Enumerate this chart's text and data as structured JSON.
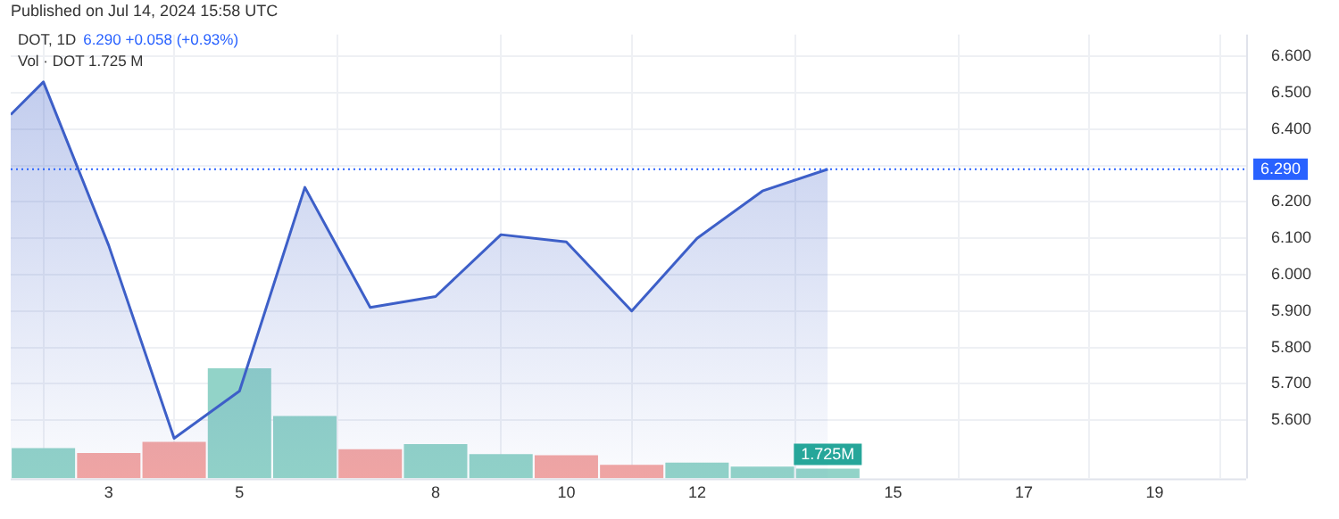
{
  "chart_data": {
    "type": "area",
    "title": "DOT, 1D",
    "annotations": [
      "6.290 +0.058 (+0.93%)",
      "Vol · DOT 1.725 M",
      "Published on Jul 14, 2024 15:58 UTC"
    ],
    "xlim": [
      1.5,
      20.4
    ],
    "xticks": [
      3,
      5,
      8,
      10,
      12,
      15,
      17,
      19
    ],
    "ylim": [
      5.44,
      6.66
    ],
    "yticks": [
      {
        "value": 5.6,
        "label": "5.600"
      },
      {
        "value": 5.7,
        "label": "5.700"
      },
      {
        "value": 5.8,
        "label": "5.800"
      },
      {
        "value": 5.9,
        "label": "5.900"
      },
      {
        "value": 6.0,
        "label": "6.000"
      },
      {
        "value": 6.1,
        "label": "6.100"
      },
      {
        "value": 6.2,
        "label": "6.200"
      },
      {
        "value": 6.3,
        "label": null
      },
      {
        "value": 6.4,
        "label": "6.400"
      },
      {
        "value": 6.5,
        "label": "6.500"
      },
      {
        "value": 6.6,
        "label": "6.600"
      }
    ],
    "y2lim": [
      0,
      79
    ],
    "grid": true,
    "legend": false,
    "ref_lines": [
      {
        "axis": "y",
        "value": 6.29,
        "label": "6.290",
        "color": "#2962ff",
        "line_style": "dotted"
      }
    ],
    "series": [
      {
        "color": "#3d5fc8",
        "x": [
          1.5,
          2,
          3,
          4,
          5,
          6,
          7,
          8,
          9,
          10,
          11,
          12,
          13,
          14
        ],
        "values": [
          6.44,
          6.53,
          6.08,
          5.55,
          5.68,
          6.24,
          5.91,
          5.94,
          6.11,
          6.09,
          5.9,
          6.1,
          6.23,
          6.29
        ]
      },
      {
        "type": "bar",
        "axis": "y2",
        "x": [
          2,
          3,
          4,
          5,
          6,
          7,
          8,
          9,
          10,
          11,
          12,
          13,
          14
        ],
        "values": [
          5.4,
          4.5,
          6.5,
          19.6,
          11.1,
          5.2,
          6.1,
          4.3,
          4.1,
          2.4,
          2.8,
          2.1,
          1.725
        ],
        "colors": [
          "#92d3c8",
          "#f3a6a3",
          "#f3a6a3",
          "#92d3c8",
          "#92d3c8",
          "#f3a6a3",
          "#92d3c8",
          "#92d3c8",
          "#f3a6a3",
          "#f3a6a3",
          "#92d3c8",
          "#92d3c8",
          "#92d3c8"
        ],
        "value_labels": [
          null,
          null,
          null,
          null,
          null,
          null,
          null,
          null,
          null,
          null,
          null,
          null,
          "1.725M"
        ]
      }
    ]
  }
}
